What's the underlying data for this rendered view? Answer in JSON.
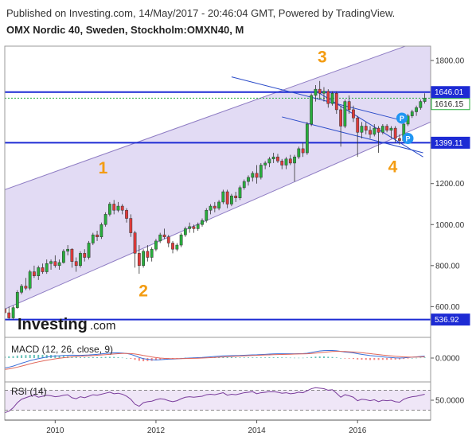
{
  "header": {
    "published": "Published on Investing.com, 14/May/2017 - 20:46:04 GMT, Powered by TradingView.",
    "symbol": "OMX Nordic 40, Sweden, Stockholm:OMXN40, M"
  },
  "logo": {
    "text": "Investing",
    "suffix": ".com"
  },
  "colors": {
    "up": "#27ae3c",
    "down": "#e03a3a",
    "channel_fill": "#d8cff0",
    "channel_line": "#8e7cc3",
    "level": "#1d2bd4",
    "trend": "#2b4cc9",
    "wave": "#f39c12",
    "macd": "#3a6fd8",
    "signal": "#e0675a",
    "rsi": "#7a3c9c",
    "rsi_band": "#efe6f7",
    "marker": "#2196f3"
  },
  "chart_data": [
    {
      "type": "candlestick",
      "x_ticks": [
        "2010",
        "2012",
        "2014",
        "2016"
      ],
      "y_ticks": [
        "600.00",
        "800.00",
        "1000.00",
        "1200.00",
        "1400.00",
        "1800.00"
      ],
      "ylim": [
        520,
        1870
      ],
      "xlim": [
        2009.0,
        2017.45
      ],
      "price_tags": [
        "1646.01",
        "1616.15",
        "1399.11",
        "536.92"
      ],
      "levels": [
        {
          "value": 1646.01,
          "label": "1646.01",
          "style": "solid"
        },
        {
          "value": 1399.11,
          "label": "1399.11",
          "style": "solid"
        },
        {
          "value": 536.92,
          "label": "536.92",
          "style": "solid"
        },
        {
          "value": 1616.15,
          "label": "1616.15",
          "style": "dotted"
        }
      ],
      "channel": {
        "lower": [
          [
            2009.0,
            588
          ],
          [
            2017.45,
            1500
          ]
        ],
        "upper": [
          [
            2009.0,
            1170
          ],
          [
            2016.95,
            1870
          ]
        ],
        "mid": [
          [
            2009.0,
            879
          ],
          [
            2017.45,
            1663
          ]
        ]
      },
      "trendlines": [
        [
          [
            2013.5,
            1720
          ],
          [
            2016.85,
            1510
          ]
        ],
        [
          [
            2015.15,
            1655
          ],
          [
            2017.3,
            1330
          ]
        ],
        [
          [
            2014.5,
            1525
          ],
          [
            2017.3,
            1350
          ]
        ]
      ],
      "wave_labels": [
        {
          "text": "1",
          "x": 2010.95,
          "y": 1250
        },
        {
          "text": "2",
          "x": 2011.75,
          "y": 650
        },
        {
          "text": "3",
          "x": 2015.3,
          "y": 1790
        },
        {
          "text": "4",
          "x": 2016.7,
          "y": 1255
        }
      ],
      "markers": [
        {
          "text": "P",
          "x": 2016.88,
          "y": 1519
        },
        {
          "text": "P",
          "x": 2017.0,
          "y": 1420
        }
      ],
      "ohlc": [
        [
          2009.0,
          590,
          610,
          537,
          570
        ],
        [
          2009.083,
          570,
          600,
          540,
          545
        ],
        [
          2009.167,
          545,
          605,
          537,
          595
        ],
        [
          2009.25,
          595,
          680,
          590,
          670
        ],
        [
          2009.333,
          670,
          710,
          660,
          700
        ],
        [
          2009.417,
          700,
          740,
          680,
          690
        ],
        [
          2009.5,
          690,
          780,
          680,
          770
        ],
        [
          2009.583,
          770,
          800,
          740,
          750
        ],
        [
          2009.667,
          750,
          800,
          730,
          790
        ],
        [
          2009.75,
          790,
          810,
          760,
          770
        ],
        [
          2009.833,
          770,
          830,
          760,
          810
        ],
        [
          2009.917,
          810,
          830,
          780,
          820
        ],
        [
          2010.0,
          820,
          850,
          790,
          800
        ],
        [
          2010.083,
          800,
          830,
          780,
          815
        ],
        [
          2010.167,
          815,
          880,
          810,
          870
        ],
        [
          2010.25,
          870,
          900,
          850,
          880
        ],
        [
          2010.333,
          880,
          885,
          790,
          820
        ],
        [
          2010.417,
          820,
          840,
          770,
          800
        ],
        [
          2010.5,
          800,
          870,
          790,
          860
        ],
        [
          2010.583,
          860,
          880,
          820,
          840
        ],
        [
          2010.667,
          840,
          920,
          830,
          910
        ],
        [
          2010.75,
          910,
          960,
          900,
          950
        ],
        [
          2010.833,
          950,
          970,
          920,
          940
        ],
        [
          2010.917,
          940,
          1010,
          930,
          1000
        ],
        [
          2011.0,
          1000,
          1060,
          990,
          1050
        ],
        [
          2011.083,
          1050,
          1110,
          1040,
          1100
        ],
        [
          2011.167,
          1100,
          1120,
          1050,
          1070
        ],
        [
          2011.25,
          1070,
          1110,
          1060,
          1090
        ],
        [
          2011.333,
          1090,
          1100,
          1050,
          1070
        ],
        [
          2011.417,
          1070,
          1080,
          1010,
          1030
        ],
        [
          2011.5,
          1030,
          1050,
          940,
          960
        ],
        [
          2011.583,
          960,
          970,
          790,
          860
        ],
        [
          2011.667,
          860,
          900,
          760,
          800
        ],
        [
          2011.75,
          800,
          880,
          790,
          870
        ],
        [
          2011.833,
          870,
          900,
          820,
          840
        ],
        [
          2011.917,
          840,
          890,
          820,
          880
        ],
        [
          2012.0,
          880,
          930,
          870,
          920
        ],
        [
          2012.083,
          920,
          960,
          910,
          950
        ],
        [
          2012.167,
          950,
          980,
          930,
          940
        ],
        [
          2012.25,
          940,
          950,
          890,
          910
        ],
        [
          2012.333,
          910,
          920,
          860,
          880
        ],
        [
          2012.417,
          880,
          910,
          870,
          900
        ],
        [
          2012.5,
          900,
          960,
          890,
          950
        ],
        [
          2012.583,
          950,
          990,
          940,
          980
        ],
        [
          2012.667,
          980,
          1010,
          960,
          990
        ],
        [
          2012.75,
          990,
          1000,
          960,
          980
        ],
        [
          2012.833,
          980,
          1010,
          970,
          1000
        ],
        [
          2012.917,
          1000,
          1030,
          990,
          1020
        ],
        [
          2013.0,
          1020,
          1080,
          1010,
          1070
        ],
        [
          2013.083,
          1070,
          1100,
          1050,
          1090
        ],
        [
          2013.167,
          1090,
          1110,
          1060,
          1080
        ],
        [
          2013.25,
          1080,
          1120,
          1070,
          1110
        ],
        [
          2013.333,
          1110,
          1170,
          1100,
          1160
        ],
        [
          2013.417,
          1160,
          1170,
          1080,
          1100
        ],
        [
          2013.5,
          1100,
          1150,
          1090,
          1140
        ],
        [
          2013.583,
          1140,
          1160,
          1110,
          1130
        ],
        [
          2013.667,
          1130,
          1190,
          1120,
          1180
        ],
        [
          2013.75,
          1180,
          1220,
          1170,
          1210
        ],
        [
          2013.833,
          1210,
          1240,
          1190,
          1230
        ],
        [
          2013.917,
          1230,
          1260,
          1210,
          1250
        ],
        [
          2014.0,
          1250,
          1290,
          1200,
          1230
        ],
        [
          2014.083,
          1230,
          1300,
          1220,
          1290
        ],
        [
          2014.167,
          1290,
          1310,
          1270,
          1300
        ],
        [
          2014.25,
          1300,
          1330,
          1280,
          1320
        ],
        [
          2014.333,
          1320,
          1350,
          1300,
          1330
        ],
        [
          2014.417,
          1330,
          1345,
          1300,
          1310
        ],
        [
          2014.5,
          1310,
          1320,
          1270,
          1290
        ],
        [
          2014.583,
          1290,
          1330,
          1270,
          1320
        ],
        [
          2014.667,
          1320,
          1340,
          1290,
          1300
        ],
        [
          2014.75,
          1300,
          1340,
          1210,
          1330
        ],
        [
          2014.833,
          1330,
          1380,
          1320,
          1370
        ],
        [
          2014.917,
          1370,
          1400,
          1330,
          1350
        ],
        [
          2015.0,
          1350,
          1500,
          1340,
          1490
        ],
        [
          2015.083,
          1490,
          1640,
          1480,
          1630
        ],
        [
          2015.167,
          1630,
          1680,
          1600,
          1660
        ],
        [
          2015.25,
          1660,
          1700,
          1610,
          1640
        ],
        [
          2015.333,
          1640,
          1670,
          1600,
          1650
        ],
        [
          2015.417,
          1650,
          1660,
          1570,
          1590
        ],
        [
          2015.5,
          1590,
          1650,
          1580,
          1640
        ],
        [
          2015.583,
          1640,
          1650,
          1540,
          1560
        ],
        [
          2015.667,
          1560,
          1580,
          1380,
          1480
        ],
        [
          2015.75,
          1480,
          1610,
          1470,
          1600
        ],
        [
          2015.833,
          1600,
          1630,
          1540,
          1560
        ],
        [
          2015.917,
          1560,
          1580,
          1500,
          1520
        ],
        [
          2016.0,
          1520,
          1530,
          1330,
          1450
        ],
        [
          2016.083,
          1450,
          1500,
          1420,
          1480
        ],
        [
          2016.167,
          1480,
          1500,
          1440,
          1460
        ],
        [
          2016.25,
          1460,
          1480,
          1420,
          1440
        ],
        [
          2016.333,
          1440,
          1490,
          1430,
          1470
        ],
        [
          2016.417,
          1470,
          1480,
          1350,
          1450
        ],
        [
          2016.5,
          1450,
          1490,
          1440,
          1480
        ],
        [
          2016.583,
          1480,
          1490,
          1450,
          1460
        ],
        [
          2016.667,
          1460,
          1480,
          1420,
          1470
        ],
        [
          2016.75,
          1470,
          1480,
          1400,
          1420
        ],
        [
          2016.833,
          1420,
          1440,
          1390,
          1410
        ],
        [
          2016.917,
          1410,
          1500,
          1400,
          1490
        ],
        [
          2017.0,
          1490,
          1540,
          1480,
          1530
        ],
        [
          2017.083,
          1530,
          1560,
          1520,
          1550
        ],
        [
          2017.167,
          1550,
          1580,
          1530,
          1570
        ],
        [
          2017.25,
          1570,
          1610,
          1560,
          1600
        ],
        [
          2017.333,
          1600,
          1640,
          1590,
          1616
        ]
      ]
    },
    {
      "type": "line",
      "title": "MACD (12, 26, close, 9)",
      "y_ticks": [
        "0.0000"
      ],
      "series": [
        {
          "name": "MACD",
          "values": [
            -95,
            -88,
            -78,
            -64,
            -50,
            -38,
            -25,
            -15,
            -6,
            2,
            10,
            16,
            20,
            22,
            25,
            27,
            28,
            27,
            26,
            28,
            30,
            33,
            36,
            40,
            44,
            48,
            50,
            50,
            48,
            44,
            36,
            22,
            6,
            -6,
            -12,
            -16,
            -18,
            -16,
            -13,
            -11,
            -10,
            -8,
            -5,
            -2,
            0,
            2,
            4,
            6,
            9,
            12,
            15,
            18,
            21,
            22,
            23,
            24,
            25,
            27,
            29,
            31,
            32,
            34,
            36,
            38,
            40,
            41,
            41,
            41,
            41,
            41,
            42,
            43,
            46,
            54,
            62,
            68,
            72,
            73,
            73,
            70,
            64,
            58,
            55,
            50,
            42,
            36,
            30,
            24,
            20,
            16,
            12,
            8,
            5,
            2,
            0,
            2,
            5,
            9,
            12,
            15,
            18
          ]
        },
        {
          "name": "Signal",
          "values": [
            -110,
            -105,
            -97,
            -88,
            -78,
            -67,
            -56,
            -46,
            -37,
            -29,
            -21,
            -14,
            -8,
            -2,
            3,
            8,
            12,
            15,
            18,
            20,
            22,
            24,
            27,
            30,
            33,
            36,
            39,
            42,
            44,
            44,
            43,
            39,
            33,
            25,
            18,
            11,
            5,
            0,
            -3,
            -5,
            -6,
            -6,
            -6,
            -5,
            -4,
            -3,
            -2,
            0,
            2,
            4,
            6,
            9,
            11,
            13,
            15,
            17,
            19,
            21,
            23,
            25,
            26,
            28,
            30,
            31,
            33,
            34,
            35,
            36,
            37,
            38,
            39,
            40,
            41,
            44,
            48,
            52,
            56,
            60,
            63,
            64,
            64,
            63,
            61,
            59,
            56,
            52,
            47,
            43,
            38,
            34,
            29,
            25,
            21,
            17,
            14,
            11,
            10,
            9,
            10,
            11,
            12
          ]
        }
      ]
    },
    {
      "type": "line",
      "title": "RSI (14)",
      "y_ticks": [
        "50.0000"
      ],
      "ylim": [
        15,
        85
      ],
      "bands": [
        30,
        70
      ],
      "series": [
        {
          "name": "RSI",
          "values": [
            25,
            28,
            35,
            45,
            52,
            55,
            58,
            60,
            56,
            58,
            60,
            59,
            57,
            58,
            60,
            61,
            55,
            53,
            57,
            55,
            58,
            61,
            60,
            62,
            64,
            66,
            63,
            64,
            62,
            58,
            52,
            42,
            38,
            45,
            47,
            48,
            51,
            53,
            52,
            49,
            47,
            49,
            53,
            56,
            57,
            56,
            57,
            58,
            61,
            62,
            61,
            63,
            65,
            60,
            62,
            61,
            63,
            65,
            66,
            67,
            63,
            65,
            66,
            67,
            67,
            66,
            64,
            65,
            63,
            64,
            66,
            65,
            69,
            73,
            75,
            74,
            73,
            70,
            71,
            64,
            56,
            61,
            59,
            56,
            49,
            52,
            51,
            49,
            51,
            47,
            50,
            49,
            50,
            47,
            46,
            52,
            55,
            57,
            58,
            60,
            62
          ]
        }
      ]
    }
  ]
}
